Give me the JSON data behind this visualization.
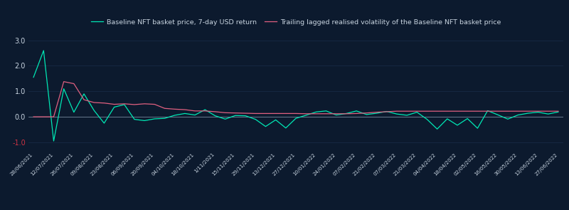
{
  "background_color": "#0c1a2e",
  "grid_color": "#1a2e4a",
  "text_color": "#c8d4e0",
  "line1_color": "#00e8b5",
  "line2_color": "#e06080",
  "legend1": "Baseline NFT basket price, 7-day USD return",
  "legend2": "Trailing lagged realised volatility of the Baseline NFT basket price",
  "ylim": [
    -1.35,
    3.1
  ],
  "yticks": [
    0.0,
    1.0,
    2.0,
    3.0
  ],
  "ytick_minus1": -1.0,
  "ytick_minus1_color": "#cc3344",
  "x_labels": [
    "28/06/2021",
    "12/07/2021",
    "26/07/2021",
    "09/08/2021",
    "23/08/2021",
    "06/09/2021",
    "20/09/2021",
    "04/10/2021",
    "18/10/2021",
    "1/11/2021",
    "15/11/2021",
    "29/11/2021",
    "13/12/2021",
    "27/12/2021",
    "10/01/2022",
    "24/01/2022",
    "07/02/2022",
    "21/02/2022",
    "07/03/2022",
    "21/03/2022",
    "04/04/2022",
    "18/04/2022",
    "02/05/2022",
    "16/05/2022",
    "30/05/2022",
    "13/06/2022",
    "27/06/2022"
  ],
  "line1_y": [
    1.55,
    2.6,
    -0.95,
    1.1,
    0.18,
    0.9,
    0.25,
    -0.25,
    0.38,
    0.48,
    -0.1,
    -0.15,
    -0.08,
    -0.06,
    0.06,
    0.13,
    0.07,
    0.28,
    0.04,
    -0.09,
    0.05,
    0.04,
    -0.1,
    -0.38,
    -0.12,
    -0.44,
    -0.06,
    0.06,
    0.19,
    0.23,
    0.07,
    0.13,
    0.23,
    0.09,
    0.14,
    0.21,
    0.11,
    0.06,
    0.18,
    -0.1,
    -0.48,
    -0.08,
    -0.33,
    -0.07,
    -0.45,
    0.24,
    0.08,
    -0.09,
    0.07,
    0.14,
    0.18,
    0.11,
    0.19
  ],
  "line2_y": [
    0.0,
    0.0,
    0.0,
    1.38,
    1.3,
    0.67,
    0.56,
    0.54,
    0.49,
    0.51,
    0.48,
    0.51,
    0.49,
    0.33,
    0.3,
    0.28,
    0.23,
    0.23,
    0.2,
    0.16,
    0.15,
    0.14,
    0.13,
    0.13,
    0.13,
    0.13,
    0.13,
    0.12,
    0.12,
    0.12,
    0.12,
    0.12,
    0.13,
    0.15,
    0.18,
    0.2,
    0.22,
    0.22,
    0.22,
    0.22,
    0.22,
    0.22,
    0.22,
    0.22,
    0.22,
    0.22,
    0.22,
    0.22,
    0.22,
    0.22,
    0.22,
    0.22,
    0.22
  ],
  "n_points": 53
}
